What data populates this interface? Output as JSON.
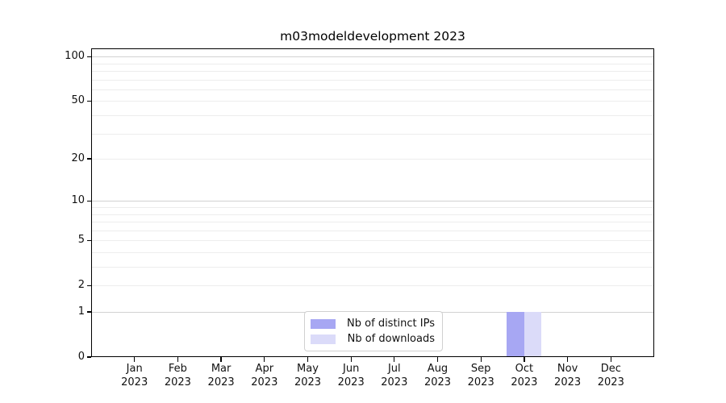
{
  "title": "m03modeldevelopment 2023",
  "chart_data": {
    "type": "bar",
    "title": "m03modeldevelopment 2023",
    "categories": [
      "Jan",
      "Feb",
      "Mar",
      "Apr",
      "May",
      "Jun",
      "Jul",
      "Aug",
      "Sep",
      "Oct",
      "Nov",
      "Dec"
    ],
    "category_year": "2023",
    "series": [
      {
        "name": "Nb of distinct IPs",
        "color": "#a7a7f3",
        "values": [
          0,
          0,
          0,
          0,
          0,
          0,
          0,
          0,
          0,
          1,
          0,
          0
        ]
      },
      {
        "name": "Nb of downloads",
        "color": "#dbdbf9",
        "values": [
          0,
          0,
          0,
          0,
          0,
          0,
          0,
          0,
          0,
          1,
          0,
          0
        ]
      }
    ],
    "xlabel": "",
    "ylabel": "",
    "yscale": "log1p",
    "ylim": [
      0,
      113.6
    ],
    "yticks": [
      0,
      1,
      2,
      5,
      10,
      20,
      50,
      100
    ],
    "major_gridlines": [
      1,
      10,
      100
    ],
    "minor_gridlines": [
      2,
      3,
      4,
      5,
      6,
      7,
      8,
      9,
      20,
      30,
      40,
      50,
      60,
      70,
      80,
      90
    ],
    "grid": true,
    "legend_position": "lower center",
    "colors": {
      "major_grid": "#d2d2d2",
      "minor_grid": "#ededed",
      "axis": "#000000",
      "text": "#111111"
    }
  }
}
